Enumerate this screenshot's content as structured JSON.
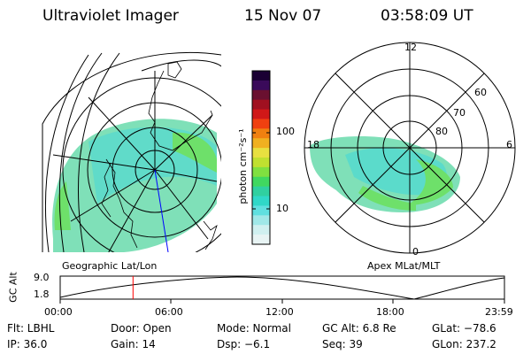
{
  "header": {
    "instrument": "Ultraviolet Imager",
    "date": "15 Nov 07",
    "time": "03:58:09 UT"
  },
  "left_map": {
    "label": "Geographic Lat/Lon"
  },
  "right_map": {
    "label": "Apex MLat/MLT",
    "mlt_labels": {
      "top": "12",
      "left": "18",
      "right": "6",
      "bottom": "0"
    },
    "lat_rings": [
      "60",
      "70",
      "80"
    ]
  },
  "colorbar": {
    "unit_label": "photon cm⁻²s⁻¹",
    "ticks": [
      "100",
      "10"
    ],
    "colors": [
      "#1a0033",
      "#3a0a5a",
      "#6a1030",
      "#a01020",
      "#d01818",
      "#f04010",
      "#f08010",
      "#f0b020",
      "#e8e040",
      "#c0e030",
      "#80e040",
      "#40d860",
      "#30d0a0",
      "#30d8c8",
      "#60e0e0",
      "#a0e8e8",
      "#d0f0f0",
      "#e8f4f4"
    ]
  },
  "alt_plot": {
    "ylabel": "GC Alt",
    "yticks": [
      "9.0",
      "1.8"
    ],
    "xticks": [
      "00:00",
      "06:00",
      "12:00",
      "18:00",
      "23:59"
    ],
    "current_time_fraction": 0.164
  },
  "info": {
    "filter": "Flt: LBHL",
    "door": "Door: Open",
    "mode": "Mode: Normal",
    "gc_alt": "GC Alt: 6.8 Re",
    "glat": "GLat: −78.6",
    "ip": "IP: 36.0",
    "gain": "Gain: 14",
    "dsp": "Dsp:   −6.1",
    "seq": "Seq: 39",
    "glon": "GLon: 237.2"
  }
}
